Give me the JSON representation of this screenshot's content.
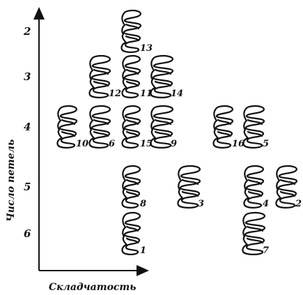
{
  "y_axis": {
    "label": "Число петель",
    "ticks": [
      "2",
      "3",
      "4",
      "5",
      "6"
    ]
  },
  "x_axis": {
    "label": "Складчатость"
  },
  "specimens": [
    {
      "id": "13",
      "row": "2",
      "col": 3
    },
    {
      "id": "12",
      "row": "3",
      "col": 2
    },
    {
      "id": "11",
      "row": "3",
      "col": 3
    },
    {
      "id": "14",
      "row": "3",
      "col": 4
    },
    {
      "id": "10",
      "row": "4",
      "col": 1
    },
    {
      "id": "6",
      "row": "4",
      "col": 2
    },
    {
      "id": "15",
      "row": "4",
      "col": 3
    },
    {
      "id": "9",
      "row": "4",
      "col": 4
    },
    {
      "id": "16",
      "row": "4",
      "col": 6
    },
    {
      "id": "5",
      "row": "4",
      "col": 7
    },
    {
      "id": "8",
      "row": "5",
      "col": 3
    },
    {
      "id": "3",
      "row": "5",
      "col": 5
    },
    {
      "id": "4",
      "row": "5",
      "col": 7
    },
    {
      "id": "2",
      "row": "5",
      "col": 8
    },
    {
      "id": "1",
      "row": "6",
      "col": 3
    },
    {
      "id": "7",
      "row": "6",
      "col": 7
    }
  ]
}
